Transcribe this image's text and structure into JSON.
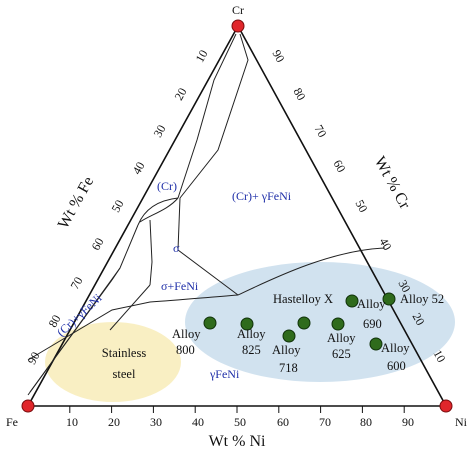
{
  "corners": {
    "top": "Cr",
    "left": "Fe",
    "right": "Ni"
  },
  "axis_titles": {
    "left": "Wt % Fe",
    "right": "Wt % Cr",
    "bottom": "Wt % Ni"
  },
  "ticks": {
    "left": [
      "90",
      "80",
      "70",
      "60",
      "50",
      "40",
      "30",
      "20",
      "10"
    ],
    "right": [
      "10",
      "20",
      "30",
      "40",
      "50",
      "60",
      "70",
      "80",
      "90"
    ],
    "bottom": [
      "10",
      "20",
      "30",
      "40",
      "50",
      "60",
      "70",
      "80",
      "90"
    ]
  },
  "phase_labels": {
    "cr": "(Cr)",
    "cr_gamma": "(Cr)+ γFeNi",
    "sigma": "σ",
    "sigma_fe_ni": "σ+FeNi",
    "cr_gamma_low": "(Cr)+γFeNi",
    "gamma": "γFeNi"
  },
  "regions": {
    "stainless": {
      "line1": "Stainless",
      "line2": "steel",
      "color": "#f9eec0"
    },
    "nickel_alloys": {
      "color": "#cfe0ee"
    }
  },
  "alloys": {
    "a800": {
      "line1": "Alloy",
      "line2": "800"
    },
    "a825": {
      "line1": "Alloy",
      "line2": "825"
    },
    "a718": {
      "line1": "Alloy",
      "line2": "718"
    },
    "hastelloy": {
      "line1": "Hastelloy X",
      "line2": ""
    },
    "a625": {
      "line1": "Alloy",
      "line2": "625"
    },
    "a690": {
      "line1": "Alloy",
      "line2": "690"
    },
    "a600": {
      "line1": "Alloy",
      "line2": "600"
    },
    "a52": {
      "line1": "Alloy 52",
      "line2": ""
    }
  },
  "colors": {
    "corner_marker": "#e0262b",
    "alloy_marker": "#2f6b1c",
    "phase_text": "#1f2fa8"
  }
}
